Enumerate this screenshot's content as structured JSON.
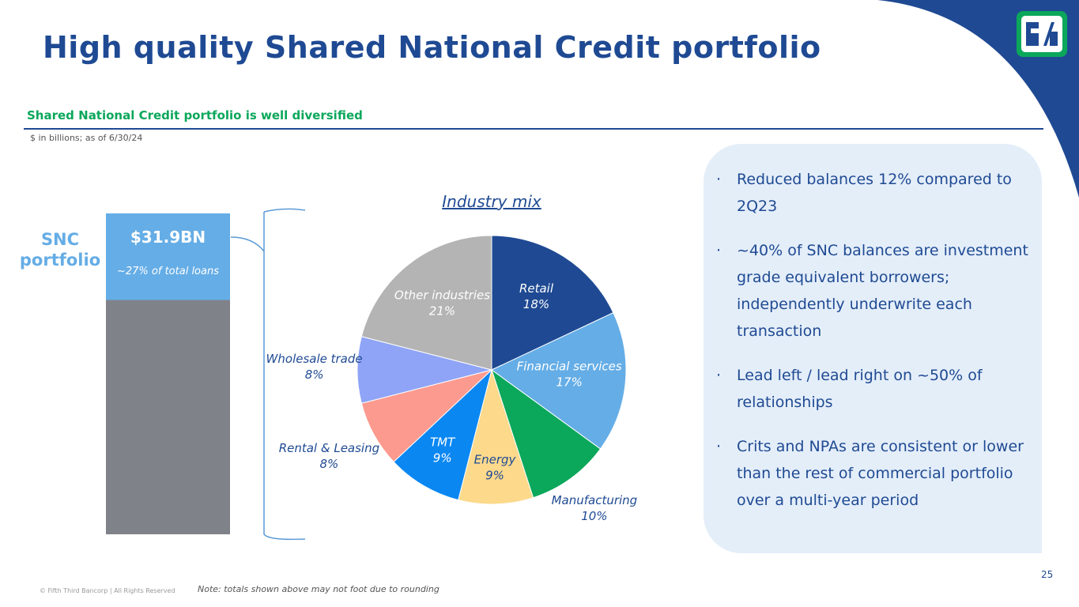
{
  "title": "High quality Shared National Credit portfolio",
  "section_title": "Shared National Credit portfolio is well diversified",
  "units_note": "$ in billions; as of 6/30/24",
  "bullets": [
    "Reduced balances 12% compared to 2Q23",
    "~40% of SNC balances are investment grade equivalent borrowers; independently underwrite each transaction",
    "Lead left / lead right on ~50% of relationships",
    "Crits and NPAs are consistent or lower than the rest of commercial portfolio over a multi-year period"
  ],
  "footer": {
    "copyright": "© Fifth Third Bancorp | All Rights Reserved",
    "note": "Note: totals shown above may not foot due to rounding",
    "page_number": "25"
  },
  "chart_data": [
    {
      "type": "share-bar",
      "label": "SNC portfolio",
      "amount_label": "$31.9BN",
      "values": [
        27
      ],
      "value_labels": [
        "~27% of total loans"
      ],
      "ylim": [
        0,
        100
      ],
      "color": "#65ade6",
      "rest_color": "#808289"
    },
    {
      "type": "pie",
      "title": "Industry mix",
      "categories": [
        "Retail",
        "Financial services",
        "Manufacturing",
        "Energy",
        "TMT",
        "Rental & Leasing",
        "Wholesale trade",
        "Other industries"
      ],
      "values": [
        18,
        17,
        10,
        9,
        9,
        8,
        8,
        21
      ],
      "value_labels": [
        "18%",
        "17%",
        "10%",
        "9%",
        "9%",
        "8%",
        "8%",
        "21%"
      ],
      "colors": [
        "#1f4a93",
        "#65ade6",
        "#0ba75b",
        "#fcd98b",
        "#0b87f2",
        "#fc9a8f",
        "#8fa4f6",
        "#b4b4b4"
      ]
    }
  ]
}
